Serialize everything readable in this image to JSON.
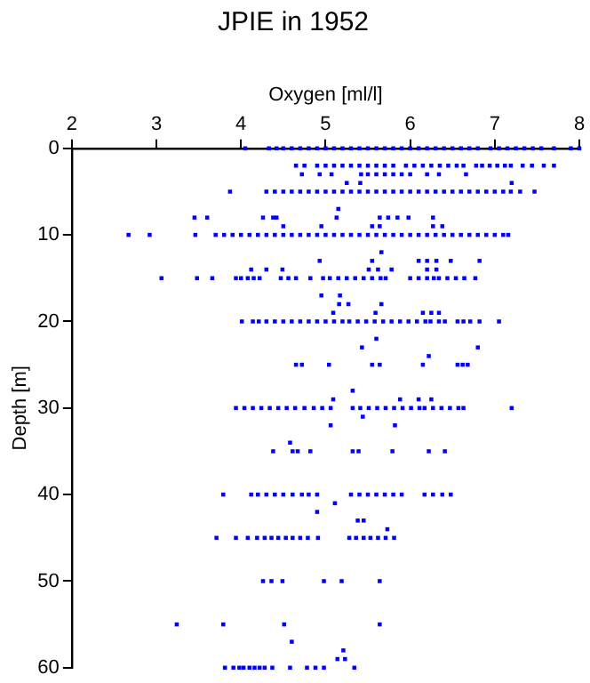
{
  "chart_data": {
    "type": "scatter",
    "title": "JPIE in 1952",
    "xlabel": "Oxygen [ml/l]",
    "ylabel": "Depth [m]",
    "xlim": [
      2,
      8
    ],
    "xticks": [
      2,
      3,
      4,
      5,
      6,
      7,
      8
    ],
    "ylim": [
      60,
      0
    ],
    "yticks": [
      0,
      10,
      20,
      30,
      40,
      50,
      60
    ],
    "grid": false,
    "legend": false,
    "marker": "square",
    "series": [
      {
        "color": "#0000ff",
        "x": [
          4.05,
          4.33,
          4.42,
          4.5,
          4.6,
          4.7,
          4.8,
          4.9,
          5.0,
          5.1,
          5.2,
          5.3,
          5.4,
          5.5,
          5.6,
          5.7,
          5.8,
          5.9,
          6.0,
          6.1,
          6.2,
          6.3,
          6.4,
          6.5,
          6.6,
          6.7,
          6.8,
          6.95,
          7.05,
          7.15,
          7.25,
          7.35,
          7.45,
          7.55,
          7.7,
          7.9,
          8.0
        ],
        "values": [
          0,
          0,
          0,
          0,
          0,
          0,
          0,
          0,
          0,
          0,
          0,
          0,
          0,
          0,
          0,
          0,
          0,
          0,
          0,
          0,
          0,
          0,
          0,
          0,
          0,
          0,
          0,
          0,
          0,
          0,
          0,
          0,
          0,
          0,
          0,
          0,
          0
        ]
      },
      {
        "color": "#0000ff",
        "x": [
          4.65,
          4.75,
          4.9,
          5.0,
          5.1,
          5.2,
          5.3,
          5.4,
          5.5,
          5.6,
          5.7,
          5.8,
          5.95,
          6.05,
          6.15,
          6.25,
          6.35,
          6.45,
          6.55,
          6.63,
          6.78,
          6.85,
          6.94,
          7.03,
          7.12,
          7.19,
          7.33,
          7.44,
          7.58,
          7.7
        ],
        "values": [
          2,
          2,
          2,
          2,
          2,
          2,
          2,
          2,
          2,
          2,
          2,
          2,
          2,
          2,
          2,
          2,
          2,
          2,
          2,
          2,
          2,
          2,
          2,
          2,
          2,
          2,
          2,
          2,
          2,
          2
        ]
      },
      {
        "color": "#0000ff",
        "x": [
          4.72,
          4.93,
          5.07,
          5.42,
          5.5,
          5.6,
          5.7,
          5.8,
          5.9,
          6.0,
          6.2,
          6.34,
          6.66
        ],
        "values": [
          3,
          3,
          3,
          3,
          3,
          3,
          3,
          3,
          3,
          3,
          3,
          3,
          3
        ]
      },
      {
        "color": "#0000ff",
        "x": [
          5.25,
          5.41,
          7.2
        ],
        "values": [
          4,
          4,
          4
        ]
      },
      {
        "color": "#0000ff",
        "x": [
          3.87,
          4.3,
          4.4,
          4.5,
          4.6,
          4.7,
          4.8,
          4.9,
          5.0,
          5.1,
          5.2,
          5.3,
          5.4,
          5.5,
          5.6,
          5.7,
          5.8,
          5.9,
          6.0,
          6.1,
          6.2,
          6.3,
          6.4,
          6.5,
          6.6,
          6.7,
          6.8,
          6.9,
          7.0,
          7.1,
          7.19,
          7.3,
          7.47
        ],
        "values": [
          5,
          5,
          5,
          5,
          5,
          5,
          5,
          5,
          5,
          5,
          5,
          5,
          5,
          5,
          5,
          5,
          5,
          5,
          5,
          5,
          5,
          5,
          5,
          5,
          5,
          5,
          5,
          5,
          5,
          5,
          5,
          5,
          5
        ]
      },
      {
        "color": "#0000ff",
        "x": [
          5.15
        ],
        "values": [
          7
        ]
      },
      {
        "color": "#0000ff",
        "x": [
          3.45,
          3.6,
          4.26,
          4.38,
          4.42,
          5.13,
          5.64,
          5.74,
          5.85,
          5.98,
          6.27
        ],
        "values": [
          8,
          8,
          8,
          8,
          8,
          8,
          8,
          8,
          8,
          8,
          8
        ]
      },
      {
        "color": "#0000ff",
        "x": [
          4.5,
          4.95,
          5.55,
          5.64,
          6.27,
          6.38
        ],
        "values": [
          9,
          9,
          9,
          9,
          9,
          9
        ]
      },
      {
        "color": "#0000ff",
        "x": [
          2.67,
          2.92,
          3.46,
          3.7,
          3.8,
          3.9,
          4.0,
          4.1,
          4.2,
          4.3,
          4.4,
          4.5,
          4.6,
          4.7,
          4.8,
          4.9,
          5.0,
          5.1,
          5.2,
          5.3,
          5.4,
          5.5,
          5.6,
          5.7,
          5.8,
          5.9,
          6.0,
          6.1,
          6.2,
          6.3,
          6.4,
          6.5,
          6.6,
          6.7,
          6.8,
          6.9,
          7.0,
          7.1,
          7.16
        ],
        "values": [
          10,
          10,
          10,
          10,
          10,
          10,
          10,
          10,
          10,
          10,
          10,
          10,
          10,
          10,
          10,
          10,
          10,
          10,
          10,
          10,
          10,
          10,
          10,
          10,
          10,
          10,
          10,
          10,
          10,
          10,
          10,
          10,
          10,
          10,
          10,
          10,
          10,
          10,
          10
        ]
      },
      {
        "color": "#0000ff",
        "x": [
          5.66
        ],
        "values": [
          12
        ]
      },
      {
        "color": "#0000ff",
        "x": [
          4.93,
          5.55,
          6.1,
          6.2,
          6.31,
          6.48,
          6.82
        ],
        "values": [
          13,
          13,
          13,
          13,
          13,
          13,
          13
        ]
      },
      {
        "color": "#0000ff",
        "x": [
          4.12,
          4.3,
          4.49,
          5.51,
          5.62,
          5.78,
          6.2,
          6.31
        ],
        "values": [
          14,
          14,
          14,
          14,
          14,
          14,
          14,
          14
        ]
      },
      {
        "color": "#0000ff",
        "x": [
          3.06,
          3.48,
          3.66,
          3.94,
          4.0,
          4.08,
          4.15,
          4.22,
          4.47,
          4.56,
          4.65,
          4.82,
          4.97,
          5.05,
          5.15,
          5.25,
          5.35,
          5.45,
          5.55,
          5.65,
          5.71,
          6.0,
          6.1,
          6.2,
          6.28,
          6.34,
          6.44,
          6.54,
          6.64,
          6.77
        ],
        "values": [
          15,
          15,
          15,
          15,
          15,
          15,
          15,
          15,
          15,
          15,
          15,
          15,
          15,
          15,
          15,
          15,
          15,
          15,
          15,
          15,
          15,
          15,
          15,
          15,
          15,
          15,
          15,
          15,
          15,
          15
        ]
      },
      {
        "color": "#0000ff",
        "x": [
          4.95,
          5.17
        ],
        "values": [
          17,
          17
        ]
      },
      {
        "color": "#0000ff",
        "x": [
          5.16,
          5.27,
          5.66
        ],
        "values": [
          18,
          18,
          18
        ]
      },
      {
        "color": "#0000ff",
        "x": [
          5.09,
          5.59,
          6.15,
          6.25,
          6.34
        ],
        "values": [
          19,
          19,
          19,
          19,
          19
        ]
      },
      {
        "color": "#0000ff",
        "x": [
          4.01,
          4.14,
          4.21,
          4.3,
          4.4,
          4.5,
          4.6,
          4.7,
          4.8,
          4.9,
          5.0,
          5.1,
          5.2,
          5.28,
          5.38,
          5.48,
          5.58,
          5.68,
          5.78,
          5.88,
          5.98,
          6.08,
          6.18,
          6.24,
          6.34,
          6.41,
          6.56,
          6.63,
          6.71,
          6.82,
          7.05
        ],
        "values": [
          20,
          20,
          20,
          20,
          20,
          20,
          20,
          20,
          20,
          20,
          20,
          20,
          20,
          20,
          20,
          20,
          20,
          20,
          20,
          20,
          20,
          20,
          20,
          20,
          20,
          20,
          20,
          20,
          20,
          20,
          20
        ]
      },
      {
        "color": "#0000ff",
        "x": [
          5.6
        ],
        "values": [
          22
        ]
      },
      {
        "color": "#0000ff",
        "x": [
          5.43,
          6.8
        ],
        "values": [
          23,
          23
        ]
      },
      {
        "color": "#0000ff",
        "x": [
          6.22
        ],
        "values": [
          24
        ]
      },
      {
        "color": "#0000ff",
        "x": [
          4.65,
          4.72,
          5.04,
          5.55,
          5.64,
          6.15,
          6.56,
          6.62,
          6.68
        ],
        "values": [
          25,
          25,
          25,
          25,
          25,
          25,
          25,
          25,
          25
        ]
      },
      {
        "color": "#0000ff",
        "x": [
          5.32
        ],
        "values": [
          28
        ]
      },
      {
        "color": "#0000ff",
        "x": [
          5.09,
          5.88,
          6.1,
          6.25
        ],
        "values": [
          29,
          29,
          29,
          29
        ]
      },
      {
        "color": "#0000ff",
        "x": [
          3.94,
          4.04,
          4.14,
          4.24,
          4.34,
          4.44,
          4.54,
          4.64,
          4.75,
          4.86,
          4.96,
          5.06,
          5.32,
          5.41,
          5.51,
          5.61,
          5.71,
          5.81,
          5.91,
          6.01,
          6.11,
          6.17,
          6.27,
          6.37,
          6.47,
          6.57,
          6.63,
          7.2
        ],
        "values": [
          30,
          30,
          30,
          30,
          30,
          30,
          30,
          30,
          30,
          30,
          30,
          30,
          30,
          30,
          30,
          30,
          30,
          30,
          30,
          30,
          30,
          30,
          30,
          30,
          30,
          30,
          30,
          30
        ]
      },
      {
        "color": "#0000ff",
        "x": [
          5.44
        ],
        "values": [
          31
        ]
      },
      {
        "color": "#0000ff",
        "x": [
          5.06,
          5.82
        ],
        "values": [
          32,
          32
        ]
      },
      {
        "color": "#0000ff",
        "x": [
          4.58
        ],
        "values": [
          34
        ]
      },
      {
        "color": "#0000ff",
        "x": [
          4.38,
          4.61,
          4.67,
          4.82,
          5.32,
          5.39,
          5.79,
          6.22,
          6.41
        ],
        "values": [
          35,
          35,
          35,
          35,
          35,
          35,
          35,
          35,
          35
        ]
      },
      {
        "color": "#0000ff",
        "x": [
          3.79,
          4.12,
          4.2,
          4.3,
          4.4,
          4.5,
          4.61,
          4.72,
          4.8,
          4.9,
          5.3,
          5.4,
          5.5,
          5.6,
          5.7,
          5.8,
          5.9,
          6.17,
          6.27,
          6.38,
          6.48
        ],
        "values": [
          40,
          40,
          40,
          40,
          40,
          40,
          40,
          40,
          40,
          40,
          40,
          40,
          40,
          40,
          40,
          40,
          40,
          40,
          40,
          40,
          40
        ]
      },
      {
        "color": "#0000ff",
        "x": [
          5.11
        ],
        "values": [
          41
        ]
      },
      {
        "color": "#0000ff",
        "x": [
          4.9
        ],
        "values": [
          42
        ]
      },
      {
        "color": "#0000ff",
        "x": [
          5.38,
          5.45
        ],
        "values": [
          43,
          43
        ]
      },
      {
        "color": "#0000ff",
        "x": [
          5.73
        ],
        "values": [
          44
        ]
      },
      {
        "color": "#0000ff",
        "x": [
          3.71,
          3.94,
          4.08,
          4.19,
          4.28,
          4.36,
          4.44,
          4.53,
          4.61,
          4.7,
          4.79,
          4.91,
          5.28,
          5.36,
          5.45,
          5.53,
          5.62,
          5.71,
          5.81
        ],
        "values": [
          45,
          45,
          45,
          45,
          45,
          45,
          45,
          45,
          45,
          45,
          45,
          45,
          45,
          45,
          45,
          45,
          45,
          45,
          45
        ]
      },
      {
        "color": "#0000ff",
        "x": [
          4.26,
          4.36,
          4.49,
          4.98,
          5.19,
          5.64
        ],
        "values": [
          50,
          50,
          50,
          50,
          50,
          50
        ]
      },
      {
        "color": "#0000ff",
        "x": [
          3.24,
          3.79,
          4.51,
          5.64
        ],
        "values": [
          55,
          55,
          55,
          55
        ]
      },
      {
        "color": "#0000ff",
        "x": [
          4.6
        ],
        "values": [
          57
        ]
      },
      {
        "color": "#0000ff",
        "x": [
          5.21
        ],
        "values": [
          58
        ]
      },
      {
        "color": "#0000ff",
        "x": [
          5.14,
          5.23
        ],
        "values": [
          59,
          59
        ]
      },
      {
        "color": "#0000ff",
        "x": [
          3.81,
          3.91,
          3.98,
          4.03,
          4.1,
          4.16,
          4.22,
          4.28,
          4.37,
          4.58,
          4.78,
          4.88,
          4.98,
          5.34
        ],
        "values": [
          60,
          60,
          60,
          60,
          60,
          60,
          60,
          60,
          60,
          60,
          60,
          60,
          60,
          60
        ]
      }
    ]
  }
}
